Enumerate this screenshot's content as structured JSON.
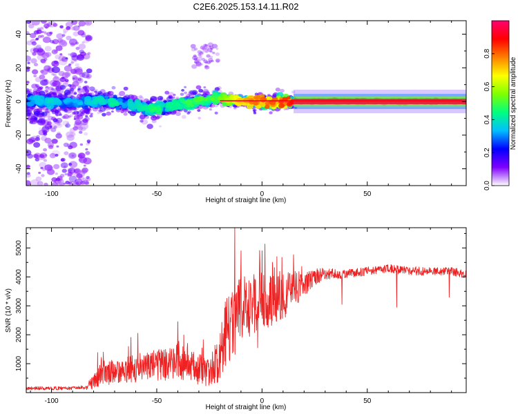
{
  "title": "C2E6.2025.153.14.11.R02",
  "colors": {
    "snr_line": "#ee2222",
    "axes": "#000000",
    "background": "#ffffff"
  },
  "chart_data": [
    {
      "type": "heatmap",
      "name": "spectrogram",
      "xlabel": "Height of straight line (km)",
      "ylabel": "Frequency (Hz)",
      "xlim": [
        -112,
        97
      ],
      "ylim": [
        -50,
        48
      ],
      "xticks": [
        -100,
        -50,
        0,
        50
      ],
      "yticks": [
        -40,
        -20,
        0,
        20,
        40
      ],
      "xtick_labels": [
        "-100",
        "-50",
        "0",
        "50"
      ],
      "ytick_labels": [
        "-40",
        "-20",
        "0",
        "20",
        "40"
      ],
      "colorbar": {
        "label": "Normalized spectral amplitude",
        "range": [
          0,
          1
        ],
        "ticks": [
          0.0,
          0.2,
          0.4,
          0.6,
          0.8
        ],
        "tick_labels": [
          "0.0",
          "0.2",
          "0.4",
          "0.6",
          "0.8"
        ],
        "colormap": [
          "#ffffff",
          "#7f00ff",
          "#0000ff",
          "#00bfff",
          "#00ff7f",
          "#7fff00",
          "#ffff00",
          "#ff7f00",
          "#ff0000",
          "#ff0070"
        ]
      },
      "ridge": {
        "x": [
          -112,
          -100,
          -90,
          -80,
          -70,
          -60,
          -55,
          -50,
          -45,
          -40,
          -35,
          -30,
          -25,
          -20,
          -15,
          -10,
          -5,
          0,
          5,
          10,
          20,
          30,
          50,
          70,
          97
        ],
        "freq": [
          0,
          0,
          -1,
          0,
          0,
          -2,
          -5,
          -4,
          -3,
          -2,
          -1,
          0,
          1,
          2,
          1,
          0,
          0,
          0,
          -1,
          0,
          0,
          0,
          0,
          0,
          0
        ],
        "amplitude": [
          0.3,
          0.35,
          0.3,
          0.35,
          0.4,
          0.35,
          0.4,
          0.45,
          0.4,
          0.4,
          0.45,
          0.5,
          0.5,
          0.5,
          0.6,
          0.7,
          0.72,
          0.75,
          0.75,
          0.8,
          0.85,
          0.9,
          0.9,
          0.9,
          0.9
        ]
      }
    },
    {
      "type": "line",
      "name": "snr",
      "xlabel": "Height of straight line (km)",
      "ylabel": "SNR (10 * v/v)",
      "xlim": [
        -112,
        97
      ],
      "ylim": [
        0,
        5700
      ],
      "xticks": [
        -100,
        -50,
        0,
        50
      ],
      "yticks": [
        1000,
        2000,
        3000,
        4000,
        5000
      ],
      "xtick_labels": [
        "-100",
        "-50",
        "0",
        "50"
      ],
      "ytick_labels": [
        "1000",
        "2000",
        "3000",
        "4000",
        "5000"
      ],
      "series": [
        {
          "envelope_x": [
            -112,
            -90,
            -83,
            -80,
            -75,
            -70,
            -65,
            -60,
            -55,
            -50,
            -45,
            -40,
            -35,
            -30,
            -25,
            -20,
            -18,
            -15,
            -13,
            -12,
            -10,
            -8,
            -5,
            -2,
            0,
            5,
            10,
            15,
            20,
            25,
            30,
            40,
            50,
            60,
            70,
            80,
            90,
            97
          ],
          "envelope_y": [
            150,
            150,
            180,
            450,
            700,
            700,
            800,
            850,
            900,
            950,
            950,
            1100,
            950,
            800,
            700,
            1200,
            1900,
            2400,
            2600,
            2700,
            2800,
            3000,
            3100,
            3000,
            3200,
            3200,
            3300,
            3600,
            3700,
            4000,
            4100,
            4100,
            4200,
            4300,
            4200,
            4200,
            4200,
            4100
          ],
          "amplitude_x": [
            -112,
            -90,
            -83,
            -80,
            -70,
            -60,
            -50,
            -40,
            -30,
            -25,
            -20,
            -15,
            -10,
            -5,
            0,
            5,
            10,
            15,
            20,
            30,
            40,
            50,
            70,
            97
          ],
          "amplitude_y": [
            60,
            60,
            80,
            350,
            450,
            500,
            550,
            600,
            550,
            500,
            900,
            1400,
            1300,
            1100,
            1000,
            900,
            800,
            700,
            400,
            200,
            150,
            150,
            150,
            150
          ],
          "spikes": [
            {
              "x": -13,
              "y": 5700
            },
            {
              "x": -10,
              "y": 4900
            },
            {
              "x": -40,
              "y": 2450
            },
            {
              "x": -59,
              "y": 2050
            },
            {
              "x": 0,
              "y": 4900
            },
            {
              "x": 7,
              "y": 4700
            },
            {
              "x": 38,
              "y": 3050
            },
            {
              "x": 64,
              "y": 2950
            },
            {
              "x": 89,
              "y": 3300
            },
            {
              "x": -2,
              "y": 1550
            }
          ]
        }
      ]
    }
  ]
}
